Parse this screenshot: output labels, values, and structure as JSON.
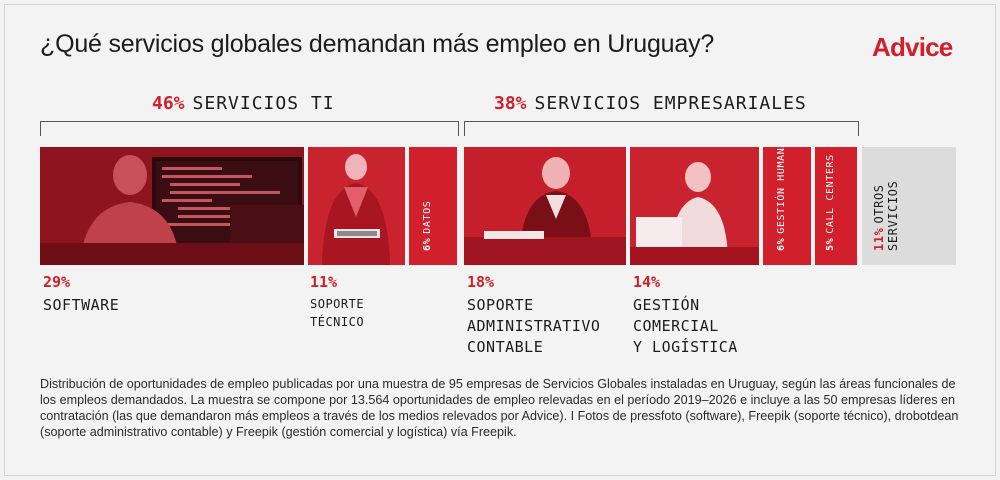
{
  "title": "¿Qué servicios globales demandan más empleo en Uruguay?",
  "logo": "Advice",
  "groups": [
    {
      "pct": "46%",
      "label": "SERVICIOS TI"
    },
    {
      "pct": "38%",
      "label": "SERVICIOS EMPRESARIALES"
    }
  ],
  "colors": {
    "accent": "#d11f2b",
    "tile_dark": "#9a1520",
    "other": "#dcdcdc"
  },
  "icons": [
    "logo-wordmark"
  ],
  "chart_data": {
    "type": "bar",
    "categories": [
      "SOFTWARE",
      "SOPORTE TÉCNICO",
      "DATOS",
      "SOPORTE ADMINISTRATIVO CONTABLE",
      "GESTIÓN COMERCIAL Y LOGÍSTICA",
      "GESTIÓN HUMANA",
      "CALL CENTERS",
      "OTROS SERVICIOS"
    ],
    "values": [
      29,
      11,
      6,
      18,
      14,
      6,
      5,
      11
    ],
    "unit": "%",
    "groups": [
      {
        "name": "SERVICIOS TI",
        "value": 46,
        "members": [
          "SOFTWARE",
          "SOPORTE TÉCNICO",
          "DATOS"
        ]
      },
      {
        "name": "SERVICIOS EMPRESARIALES",
        "value": 38,
        "members": [
          "SOPORTE ADMINISTRATIVO CONTABLE",
          "GESTIÓN COMERCIAL Y LOGÍSTICA",
          "GESTIÓN HUMANA",
          "CALL CENTERS"
        ]
      }
    ]
  },
  "labels": {
    "software": {
      "pct": "29%",
      "name": "SOFTWARE"
    },
    "soporte_tecnico": {
      "pct": "11%",
      "name": "SOPORTE\nTÉCNICO"
    },
    "datos": {
      "pct": "6%",
      "name": "DATOS"
    },
    "soporte_admin": {
      "pct": "18%",
      "name": "SOPORTE\nADMINISTRATIVO\nCONTABLE"
    },
    "gestion_comercial": {
      "pct": "14%",
      "name": "GESTIÓN\nCOMERCIAL\nY LOGÍSTICA"
    },
    "gestion_humana": {
      "pct": "6%",
      "name": "GESTIÓN HUMANA"
    },
    "call_centers": {
      "pct": "5%",
      "name": "CALL CENTERS"
    },
    "otros": {
      "pct": "11%",
      "name": "OTROS SERVICIOS"
    }
  },
  "footnote": "Distribución de oportunidades de empleo publicadas por una muestra de 95 empresas de Servicios Globales instaladas en Uruguay, según las áreas funcionales de los empleos demandados. La muestra se compone por 13.564 oportunidades de empleo relevadas en el período 2019–2026 e incluye a las 50 empresas líderes en contratación (las que demandaron más empleos a través de los medios relevados por Advice). I Fotos de pressfoto (software), Freepik (soporte técnico), drobotdean (soporte administrativo contable) y Freepik (gestión comercial y logística) vía Freepik."
}
